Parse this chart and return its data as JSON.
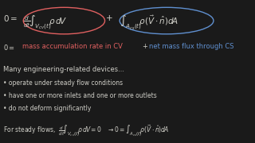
{
  "bg_color": "#1a1a1a",
  "text_color": "#d0cfc8",
  "red_color": "#e06060",
  "blue_color": "#6090d0",
  "eq_top": "0 = $\\frac{d}{dt}\\int_{V_{cv}(t)}\\rho\\,dV$ + $\\int_{A_{cs}(t)}\\rho(\\vec{V}\\cdot\\hat{n})dA$",
  "line2_black": "0 = ",
  "line2_red": "mass accumulation rate in CV",
  "line2_black2": " + ",
  "line2_blue": "net mass flux through CS",
  "line3": "Many engineering-related devices...",
  "bullet1": "• operate under steady flow conditions",
  "bullet2": "• have one or more inlets and one or more outlets",
  "bullet3": "• do not deform significantly",
  "line_steady": "For steady flows,  $\\frac{d}{dt}\\int_{V_{cv}(t)}\\rho\\,dV = 0$",
  "line_steady2": "  $\\rightarrow 0 = \\int_{A_{cs}(t)}\\rho(\\vec{V}\\cdot\\hat{n})dA$",
  "font_size_eq": 7.5,
  "font_size_text": 6.0,
  "font_size_small": 5.5
}
